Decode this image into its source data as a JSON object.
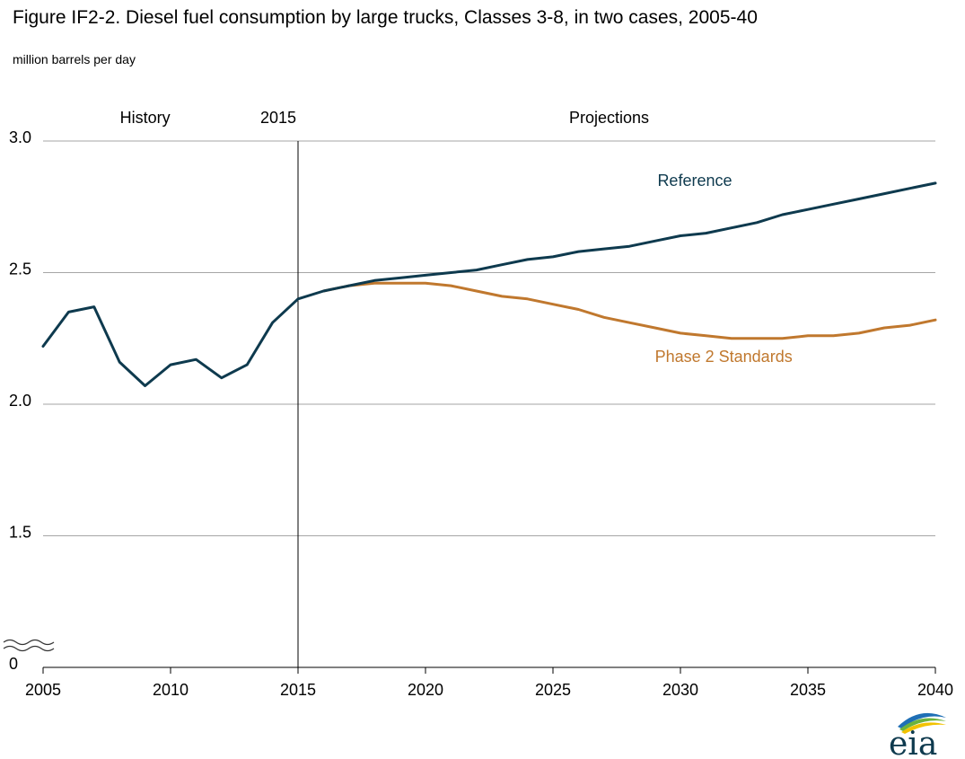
{
  "title": "Figure IF2-2. Diesel fuel consumption by large trucks, Classes 3-8, in two cases, 2005-40",
  "subtitle": "million barrels per day",
  "logo_text": "eia",
  "colors": {
    "reference": "#0e3a4e",
    "phase2": "#c0782e",
    "grid": "#a6a6a6",
    "axis": "#000000"
  },
  "chart_data": {
    "type": "line",
    "title": "Figure IF2-2. Diesel fuel consumption by large trucks, Classes 3-8, in two cases, 2005-40",
    "ylabel": "million barrels per day",
    "xlabel": "",
    "xlim": [
      2005,
      2040
    ],
    "ylim": [
      1.0,
      3.0
    ],
    "y_axis_break": true,
    "y_ticks": [
      {
        "value": 3.0,
        "label": "3.0"
      },
      {
        "value": 2.5,
        "label": "2.5"
      },
      {
        "value": 2.0,
        "label": "2.0"
      },
      {
        "value": 1.5,
        "label": "1.5"
      },
      {
        "value": 1.0,
        "label": "0"
      }
    ],
    "x_ticks": [
      2005,
      2010,
      2015,
      2020,
      2025,
      2030,
      2035,
      2040
    ],
    "x_tick_labels": [
      "2005",
      "2010",
      "2015",
      "2020",
      "2025",
      "2030",
      "2035",
      "2040"
    ],
    "grid": "horizontal",
    "divider": {
      "x": 2015,
      "label": "2015"
    },
    "region_labels": [
      {
        "text": "History",
        "x": 2009.0
      },
      {
        "text": "Projections",
        "x": 2027.2
      }
    ],
    "series": [
      {
        "name": "Reference",
        "color": "#0e3a4e",
        "label_position": {
          "x": 2029.1,
          "y": 2.83
        },
        "x": [
          2005,
          2006,
          2007,
          2008,
          2009,
          2010,
          2011,
          2012,
          2013,
          2014,
          2015,
          2016,
          2017,
          2018,
          2019,
          2020,
          2021,
          2022,
          2023,
          2024,
          2025,
          2026,
          2027,
          2028,
          2029,
          2030,
          2031,
          2032,
          2033,
          2034,
          2035,
          2036,
          2037,
          2038,
          2039,
          2040
        ],
        "values": [
          2.22,
          2.35,
          2.37,
          2.16,
          2.07,
          2.15,
          2.17,
          2.1,
          2.15,
          2.31,
          2.4,
          2.43,
          2.45,
          2.47,
          2.48,
          2.49,
          2.5,
          2.51,
          2.53,
          2.55,
          2.56,
          2.58,
          2.59,
          2.6,
          2.62,
          2.64,
          2.65,
          2.67,
          2.69,
          2.72,
          2.74,
          2.76,
          2.78,
          2.8,
          2.82,
          2.84
        ]
      },
      {
        "name": "Phase 2 Standards",
        "color": "#c0782e",
        "label_position": {
          "x": 2029.0,
          "y": 2.16
        },
        "x": [
          2016,
          2017,
          2018,
          2019,
          2020,
          2021,
          2022,
          2023,
          2024,
          2025,
          2026,
          2027,
          2028,
          2029,
          2030,
          2031,
          2032,
          2033,
          2034,
          2035,
          2036,
          2037,
          2038,
          2039,
          2040
        ],
        "values": [
          2.43,
          2.45,
          2.46,
          2.46,
          2.46,
          2.45,
          2.43,
          2.41,
          2.4,
          2.38,
          2.36,
          2.33,
          2.31,
          2.29,
          2.27,
          2.26,
          2.25,
          2.25,
          2.25,
          2.26,
          2.26,
          2.27,
          2.29,
          2.3,
          2.32
        ]
      }
    ]
  }
}
